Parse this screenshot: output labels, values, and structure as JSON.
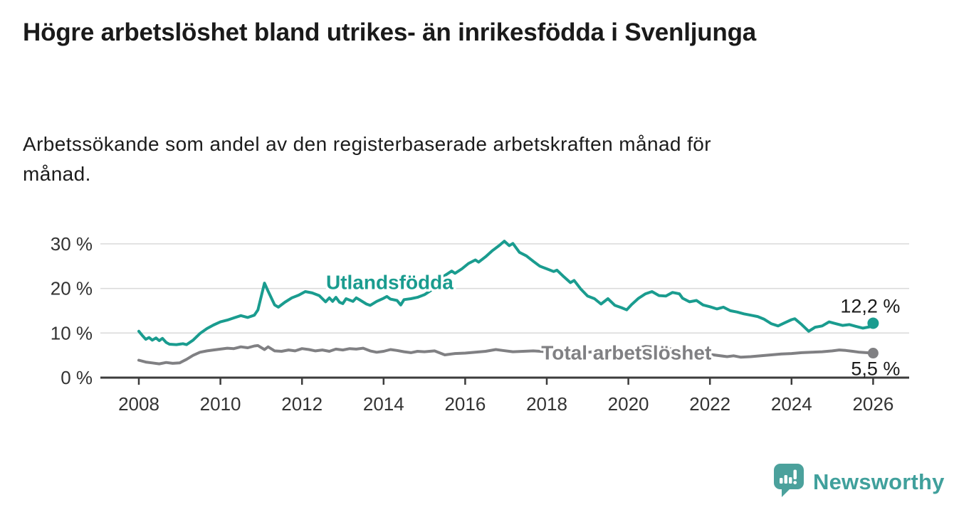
{
  "header": {
    "title": "Högre arbetslöshet bland utrikes- än inrikesfödda i Svenljunga",
    "subtitle": "Arbetssökande som andel av den registerbaserade arbetskraften månad för månad."
  },
  "chart_data": {
    "type": "line",
    "unit": "%",
    "grid": "horizontal",
    "x_axis": {
      "ticks": [
        2008,
        2010,
        2012,
        2014,
        2016,
        2018,
        2020,
        2022,
        2024,
        2026
      ],
      "range": [
        2007.05,
        2026.9
      ]
    },
    "y_axis": {
      "range": [
        0,
        32
      ],
      "ticks": [
        {
          "value": 0,
          "label": "0 %"
        },
        {
          "value": 10,
          "label": "10 %"
        },
        {
          "value": 20,
          "label": "20 %"
        },
        {
          "value": 30,
          "label": "30 %"
        }
      ]
    },
    "series": [
      {
        "name": "Utlandsfödda",
        "color": "#1a9c8f",
        "end_label": "12,2 %",
        "end_value": 12.2,
        "label_pos": {
          "x": 2014.15,
          "y": 21.4
        },
        "x": [
          2008,
          2008.08,
          2008.17,
          2008.25,
          2008.33,
          2008.42,
          2008.5,
          2008.58,
          2008.67,
          2008.75,
          2008.92,
          2009.08,
          2009.17,
          2009.33,
          2009.5,
          2009.67,
          2009.83,
          2010,
          2010.17,
          2010.33,
          2010.5,
          2010.67,
          2010.83,
          2010.92,
          2011.08,
          2011.17,
          2011.33,
          2011.42,
          2011.58,
          2011.75,
          2011.92,
          2012.08,
          2012.25,
          2012.42,
          2012.58,
          2012.67,
          2012.75,
          2012.83,
          2012.92,
          2013,
          2013.08,
          2013.25,
          2013.33,
          2013.42,
          2013.58,
          2013.67,
          2013.83,
          2014,
          2014.08,
          2014.17,
          2014.33,
          2014.42,
          2014.5,
          2014.67,
          2014.83,
          2015,
          2015.17,
          2015.33,
          2015.5,
          2015.67,
          2015.75,
          2015.92,
          2016.08,
          2016.25,
          2016.33,
          2016.5,
          2016.67,
          2016.83,
          2016.96,
          2017.08,
          2017.17,
          2017.33,
          2017.5,
          2017.67,
          2017.83,
          2018,
          2018.17,
          2018.25,
          2018.42,
          2018.58,
          2018.67,
          2018.83,
          2019,
          2019.17,
          2019.33,
          2019.5,
          2019.67,
          2019.83,
          2019.96,
          2020.08,
          2020.25,
          2020.42,
          2020.58,
          2020.75,
          2020.92,
          2021.08,
          2021.25,
          2021.33,
          2021.5,
          2021.67,
          2021.83,
          2022,
          2022.17,
          2022.33,
          2022.5,
          2022.67,
          2022.83,
          2023,
          2023.17,
          2023.33,
          2023.5,
          2023.67,
          2023.83,
          2024,
          2024.08,
          2024.25,
          2024.42,
          2024.58,
          2024.75,
          2024.92,
          2025.08,
          2025.25,
          2025.42,
          2025.58,
          2025.75,
          2025.92,
          2026
        ],
        "y": [
          10.4,
          9.5,
          8.6,
          9,
          8.4,
          8.9,
          8.3,
          8.8,
          7.9,
          7.5,
          7.4,
          7.6,
          7.4,
          8.4,
          9.9,
          11,
          11.8,
          12.5,
          12.9,
          13.4,
          13.9,
          13.5,
          14,
          15.2,
          21.2,
          19.4,
          16.3,
          15.8,
          16.9,
          17.9,
          18.5,
          19.3,
          19,
          18.4,
          17,
          17.9,
          17.1,
          18,
          16.9,
          16.6,
          17.7,
          17.1,
          17.9,
          17.4,
          16.5,
          16.2,
          17.1,
          17.8,
          18.2,
          17.6,
          17.3,
          16.3,
          17.5,
          17.7,
          18,
          18.6,
          19.6,
          21.2,
          22.9,
          23.9,
          23.4,
          24.4,
          25.6,
          26.4,
          25.9,
          27.1,
          28.5,
          29.6,
          30.6,
          29.6,
          30.1,
          28.1,
          27.3,
          26.1,
          25,
          24.4,
          23.8,
          24.1,
          22.6,
          21.3,
          21.8,
          19.9,
          18.3,
          17.7,
          16.5,
          17.7,
          16.2,
          15.7,
          15.2,
          16.4,
          17.8,
          18.8,
          19.3,
          18.4,
          18.3,
          19.1,
          18.8,
          17.8,
          17,
          17.3,
          16.3,
          15.9,
          15.4,
          15.8,
          15,
          14.7,
          14.3,
          14,
          13.7,
          13.1,
          12.1,
          11.6,
          12.3,
          13,
          13.2,
          11.9,
          10.4,
          11.3,
          11.6,
          12.5,
          12.1,
          11.7,
          11.9,
          11.5,
          11.1,
          11.4,
          12.2
        ]
      },
      {
        "name": "Total arbetslöshet",
        "color": "#808083",
        "end_label": "5,5 %",
        "end_value": 5.5,
        "label_pos": {
          "x": 2019.95,
          "y": 5.6
        },
        "x": [
          2008,
          2008.17,
          2008.33,
          2008.5,
          2008.67,
          2008.83,
          2009,
          2009.17,
          2009.33,
          2009.5,
          2009.67,
          2009.83,
          2010,
          2010.17,
          2010.33,
          2010.5,
          2010.67,
          2010.83,
          2010.92,
          2011.08,
          2011.17,
          2011.33,
          2011.5,
          2011.67,
          2011.83,
          2012,
          2012.17,
          2012.33,
          2012.5,
          2012.67,
          2012.83,
          2013,
          2013.17,
          2013.33,
          2013.5,
          2013.67,
          2013.83,
          2014,
          2014.17,
          2014.33,
          2014.5,
          2014.67,
          2014.83,
          2015,
          2015.25,
          2015.5,
          2015.75,
          2016,
          2016.25,
          2016.5,
          2016.75,
          2016.92,
          2017.17,
          2017.42,
          2017.67,
          2018,
          2018.5,
          2019,
          2019.5,
          2020,
          2020.42,
          2020.58,
          2021,
          2021.5,
          2022,
          2022.42,
          2022.58,
          2022.75,
          2023,
          2023.25,
          2023.5,
          2023.75,
          2024,
          2024.25,
          2024.5,
          2024.75,
          2025,
          2025.17,
          2025.33,
          2025.5,
          2025.67,
          2025.83,
          2026
        ],
        "y": [
          3.9,
          3.5,
          3.3,
          3.1,
          3.4,
          3.2,
          3.3,
          4.1,
          5,
          5.7,
          6,
          6.2,
          6.4,
          6.6,
          6.5,
          6.9,
          6.7,
          7.1,
          7.2,
          6.3,
          6.9,
          6,
          5.9,
          6.2,
          6,
          6.5,
          6.3,
          6,
          6.2,
          5.9,
          6.4,
          6.2,
          6.5,
          6.4,
          6.6,
          6,
          5.7,
          5.9,
          6.3,
          6.1,
          5.8,
          5.6,
          5.9,
          5.8,
          6,
          5.1,
          5.4,
          5.5,
          5.7,
          5.9,
          6.3,
          6.1,
          5.8,
          5.9,
          6,
          5.8,
          5.6,
          5.7,
          6,
          6.2,
          7,
          6.9,
          6.5,
          5.8,
          5.2,
          4.7,
          4.9,
          4.6,
          4.7,
          4.9,
          5.1,
          5.3,
          5.4,
          5.6,
          5.7,
          5.8,
          6,
          6.2,
          6.1,
          5.9,
          5.7,
          5.6,
          5.5
        ]
      }
    ]
  },
  "branding": {
    "logo_text": "Newsworthy",
    "logo_icon": "speech-bubble-bar-chart-icon",
    "color": "#40a09c"
  },
  "colors": {
    "accent_teal": "#1a9c8f",
    "line_gray": "#808083",
    "title": "#1a1a1a",
    "axis_text": "#333333",
    "gridline": "#d9d9d9",
    "axis_line": "#3c3c3c",
    "background": "#ffffff"
  }
}
